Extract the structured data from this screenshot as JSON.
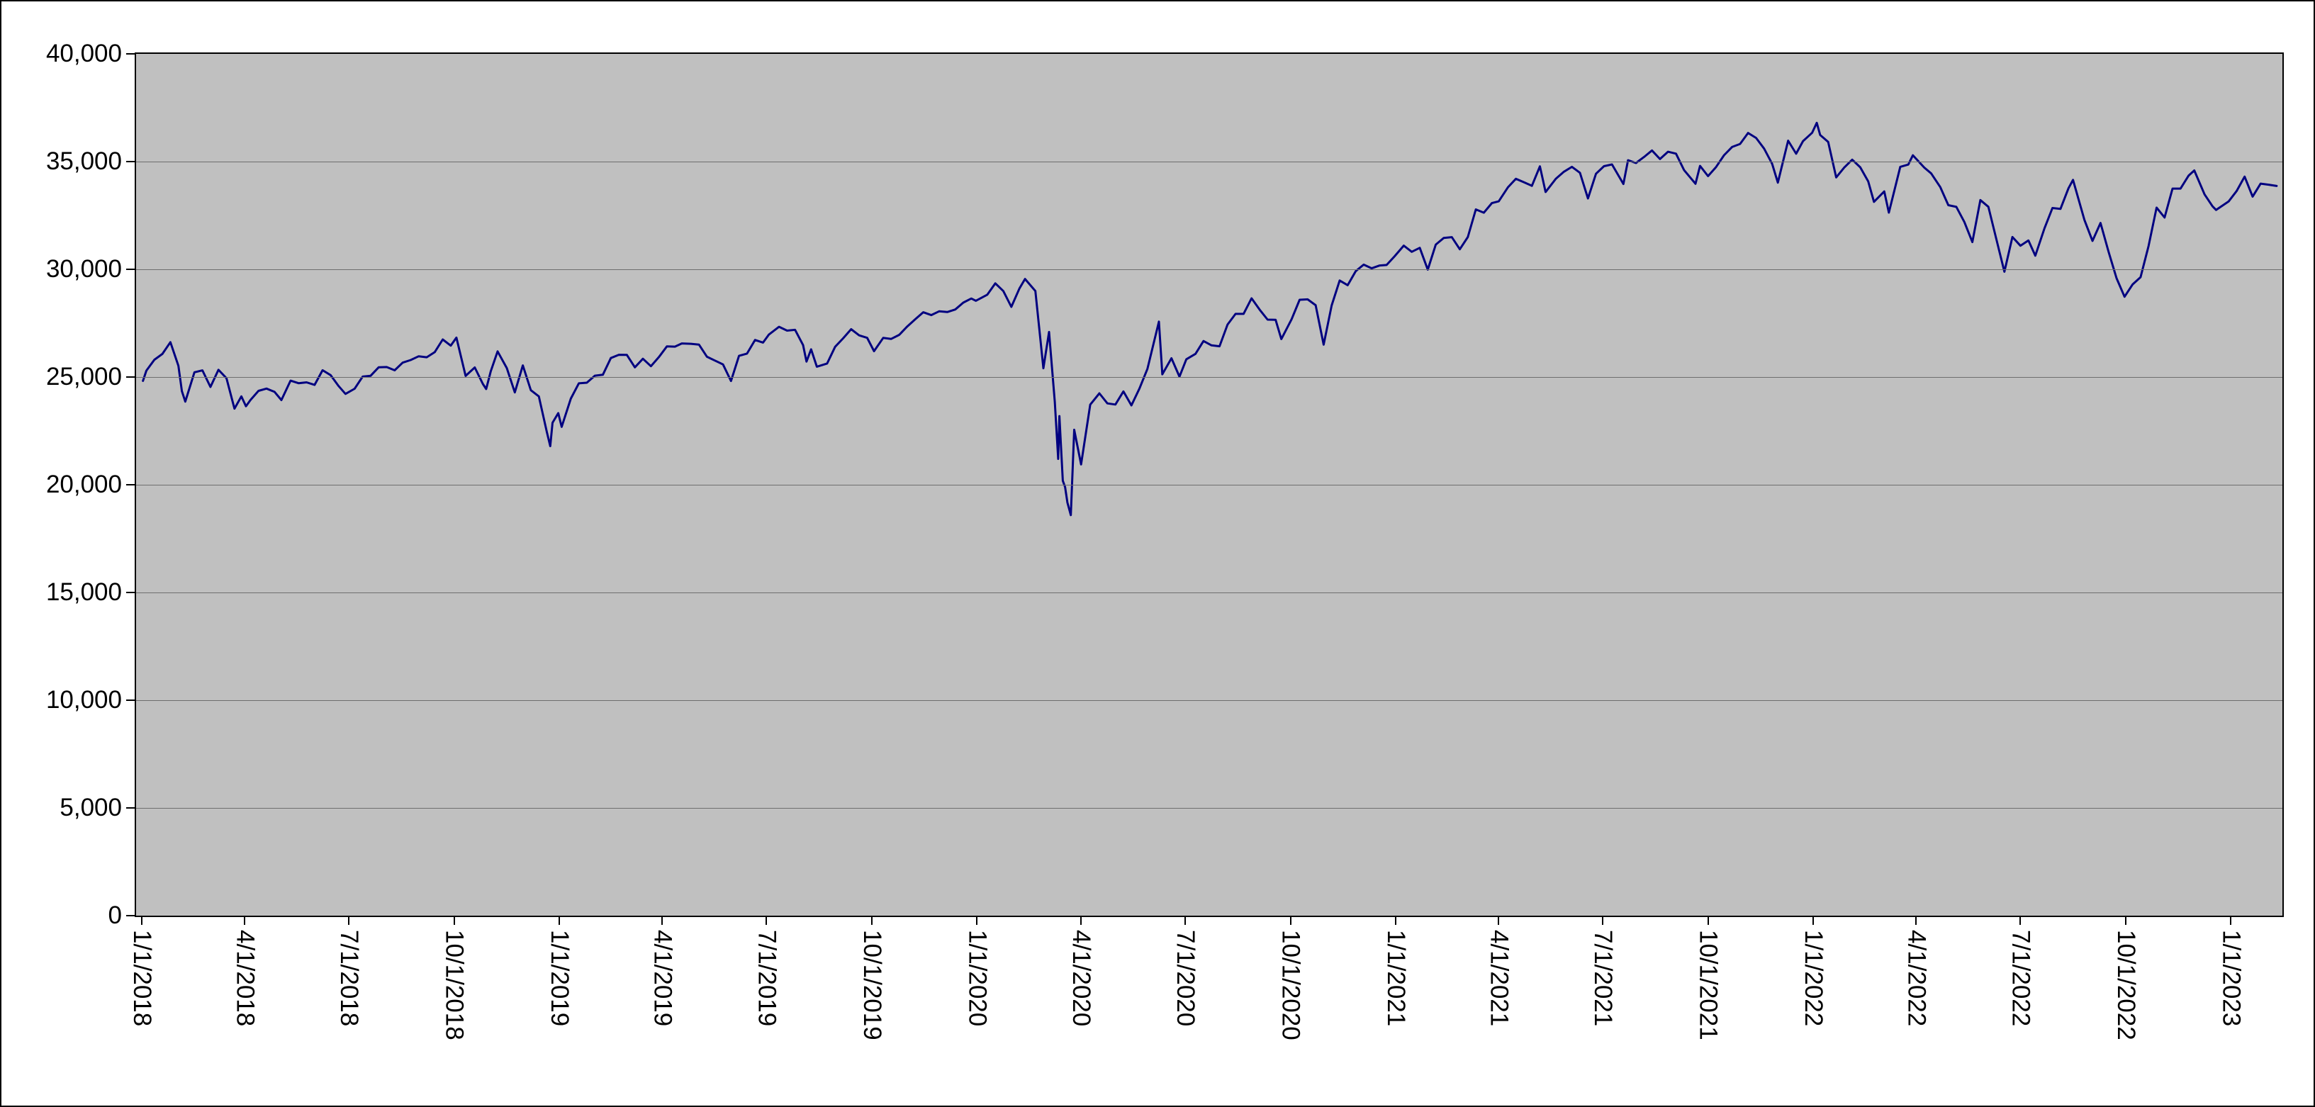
{
  "chart_data": {
    "type": "line",
    "title": "",
    "legend": "none",
    "grid": "horizontal-major",
    "colors": {
      "line": "#000080",
      "plot_bg": "#c0c0c0",
      "grid": "#6e6e6e",
      "axis": "#000000",
      "chart_bg": "#ffffff"
    },
    "y_axis": {
      "range": [
        0,
        40000
      ],
      "ticks": [
        {
          "value": 0,
          "label": "0"
        },
        {
          "value": 5000,
          "label": "5,000"
        },
        {
          "value": 10000,
          "label": "10,000"
        },
        {
          "value": 15000,
          "label": "15,000"
        },
        {
          "value": 20000,
          "label": "20,000"
        },
        {
          "value": 25000,
          "label": "25,000"
        },
        {
          "value": 30000,
          "label": "30,000"
        },
        {
          "value": 35000,
          "label": "35,000"
        },
        {
          "value": 40000,
          "label": "40,000"
        }
      ]
    },
    "x_axis": {
      "range_start": "12/27/2017",
      "range_end": "2/15/2023",
      "tick_labels": [
        "1/1/2018",
        "4/1/2018",
        "7/1/2018",
        "10/1/2018",
        "1/1/2019",
        "4/1/2019",
        "7/1/2019",
        "10/1/2019",
        "1/1/2020",
        "4/1/2020",
        "7/1/2020",
        "10/1/2020",
        "1/1/2021",
        "4/1/2021",
        "7/1/2021",
        "10/1/2021",
        "1/1/2022",
        "4/1/2022",
        "7/1/2022",
        "10/1/2022",
        "1/1/2023"
      ]
    },
    "points": [
      [
        "2018-01-02",
        24824
      ],
      [
        "2018-01-05",
        25296
      ],
      [
        "2018-01-12",
        25803
      ],
      [
        "2018-01-19",
        26072
      ],
      [
        "2018-01-26",
        26617
      ],
      [
        "2018-02-02",
        25521
      ],
      [
        "2018-02-05",
        24346
      ],
      [
        "2018-02-08",
        23860
      ],
      [
        "2018-02-16",
        25219
      ],
      [
        "2018-02-23",
        25310
      ],
      [
        "2018-03-02",
        24538
      ],
      [
        "2018-03-09",
        25336
      ],
      [
        "2018-03-16",
        24947
      ],
      [
        "2018-03-23",
        23533
      ],
      [
        "2018-03-29",
        24103
      ],
      [
        "2018-04-02",
        23644
      ],
      [
        "2018-04-06",
        23933
      ],
      [
        "2018-04-13",
        24360
      ],
      [
        "2018-04-20",
        24463
      ],
      [
        "2018-04-27",
        24311
      ],
      [
        "2018-05-03",
        23930
      ],
      [
        "2018-05-11",
        24831
      ],
      [
        "2018-05-18",
        24715
      ],
      [
        "2018-05-25",
        24753
      ],
      [
        "2018-06-01",
        24635
      ],
      [
        "2018-06-08",
        25317
      ],
      [
        "2018-06-15",
        25090
      ],
      [
        "2018-06-22",
        24581
      ],
      [
        "2018-06-28",
        24216
      ],
      [
        "2018-07-06",
        24456
      ],
      [
        "2018-07-13",
        25019
      ],
      [
        "2018-07-20",
        25058
      ],
      [
        "2018-07-27",
        25451
      ],
      [
        "2018-08-03",
        25463
      ],
      [
        "2018-08-10",
        25313
      ],
      [
        "2018-08-17",
        25669
      ],
      [
        "2018-08-24",
        25790
      ],
      [
        "2018-08-31",
        25965
      ],
      [
        "2018-09-07",
        25917
      ],
      [
        "2018-09-14",
        26155
      ],
      [
        "2018-09-21",
        26744
      ],
      [
        "2018-09-28",
        26458
      ],
      [
        "2018-10-03",
        26828
      ],
      [
        "2018-10-11",
        25053
      ],
      [
        "2018-10-19",
        25444
      ],
      [
        "2018-10-26",
        24688
      ],
      [
        "2018-10-29",
        24443
      ],
      [
        "2018-11-02",
        25271
      ],
      [
        "2018-11-08",
        26191
      ],
      [
        "2018-11-16",
        25413
      ],
      [
        "2018-11-23",
        24286
      ],
      [
        "2018-11-30",
        25538
      ],
      [
        "2018-12-07",
        24389
      ],
      [
        "2018-12-14",
        24101
      ],
      [
        "2018-12-21",
        22445
      ],
      [
        "2018-12-24",
        21792
      ],
      [
        "2018-12-26",
        22878
      ],
      [
        "2018-12-31",
        23327
      ],
      [
        "2019-01-03",
        22686
      ],
      [
        "2019-01-11",
        23996
      ],
      [
        "2019-01-18",
        24706
      ],
      [
        "2019-01-25",
        24737
      ],
      [
        "2019-02-01",
        25064
      ],
      [
        "2019-02-08",
        25106
      ],
      [
        "2019-02-15",
        25883
      ],
      [
        "2019-02-22",
        26032
      ],
      [
        "2019-03-01",
        26026
      ],
      [
        "2019-03-08",
        25450
      ],
      [
        "2019-03-15",
        25849
      ],
      [
        "2019-03-22",
        25502
      ],
      [
        "2019-03-29",
        25929
      ],
      [
        "2019-04-05",
        26425
      ],
      [
        "2019-04-12",
        26412
      ],
      [
        "2019-04-18",
        26560
      ],
      [
        "2019-04-26",
        26543
      ],
      [
        "2019-05-03",
        26505
      ],
      [
        "2019-05-10",
        25942
      ],
      [
        "2019-05-17",
        25764
      ],
      [
        "2019-05-24",
        25586
      ],
      [
        "2019-05-31",
        24815
      ],
      [
        "2019-06-07",
        25984
      ],
      [
        "2019-06-14",
        26090
      ],
      [
        "2019-06-21",
        26720
      ],
      [
        "2019-06-28",
        26600
      ],
      [
        "2019-07-03",
        26966
      ],
      [
        "2019-07-12",
        27332
      ],
      [
        "2019-07-19",
        27154
      ],
      [
        "2019-07-26",
        27192
      ],
      [
        "2019-08-02",
        26485
      ],
      [
        "2019-08-05",
        25718
      ],
      [
        "2019-08-09",
        26287
      ],
      [
        "2019-08-14",
        25479
      ],
      [
        "2019-08-23",
        25629
      ],
      [
        "2019-08-30",
        26403
      ],
      [
        "2019-09-06",
        26797
      ],
      [
        "2019-09-13",
        27220
      ],
      [
        "2019-09-20",
        26935
      ],
      [
        "2019-09-27",
        26820
      ],
      [
        "2019-10-03",
        26201
      ],
      [
        "2019-10-11",
        26817
      ],
      [
        "2019-10-18",
        26770
      ],
      [
        "2019-10-25",
        26958
      ],
      [
        "2019-11-01",
        27347
      ],
      [
        "2019-11-08",
        27681
      ],
      [
        "2019-11-15",
        28005
      ],
      [
        "2019-11-22",
        27876
      ],
      [
        "2019-11-29",
        28051
      ],
      [
        "2019-12-06",
        28015
      ],
      [
        "2019-12-13",
        28135
      ],
      [
        "2019-12-20",
        28455
      ],
      [
        "2019-12-27",
        28645
      ],
      [
        "2019-12-31",
        28538
      ],
      [
        "2020-01-10",
        28824
      ],
      [
        "2020-01-17",
        29348
      ],
      [
        "2020-01-24",
        28990
      ],
      [
        "2020-01-31",
        28256
      ],
      [
        "2020-02-07",
        29103
      ],
      [
        "2020-02-12",
        29551
      ],
      [
        "2020-02-21",
        28992
      ],
      [
        "2020-02-28",
        25409
      ],
      [
        "2020-03-04",
        27091
      ],
      [
        "2020-03-09",
        23851
      ],
      [
        "2020-03-12",
        21200
      ],
      [
        "2020-03-13",
        23186
      ],
      [
        "2020-03-16",
        20188
      ],
      [
        "2020-03-18",
        19899
      ],
      [
        "2020-03-20",
        19174
      ],
      [
        "2020-03-23",
        18592
      ],
      [
        "2020-03-26",
        22552
      ],
      [
        "2020-04-01",
        20943
      ],
      [
        "2020-04-09",
        23719
      ],
      [
        "2020-04-17",
        24242
      ],
      [
        "2020-04-24",
        23775
      ],
      [
        "2020-05-01",
        23724
      ],
      [
        "2020-05-08",
        24331
      ],
      [
        "2020-05-15",
        23685
      ],
      [
        "2020-05-22",
        24465
      ],
      [
        "2020-05-29",
        25383
      ],
      [
        "2020-06-08",
        27572
      ],
      [
        "2020-06-11",
        25128
      ],
      [
        "2020-06-19",
        25871
      ],
      [
        "2020-06-26",
        25016
      ],
      [
        "2020-07-02",
        25827
      ],
      [
        "2020-07-10",
        26075
      ],
      [
        "2020-07-17",
        26672
      ],
      [
        "2020-07-24",
        26470
      ],
      [
        "2020-07-31",
        26428
      ],
      [
        "2020-08-07",
        27433
      ],
      [
        "2020-08-14",
        27931
      ],
      [
        "2020-08-21",
        27930
      ],
      [
        "2020-08-28",
        28654
      ],
      [
        "2020-09-04",
        28133
      ],
      [
        "2020-09-11",
        27666
      ],
      [
        "2020-09-18",
        27657
      ],
      [
        "2020-09-23",
        26763
      ],
      [
        "2020-10-02",
        27683
      ],
      [
        "2020-10-09",
        28587
      ],
      [
        "2020-10-16",
        28606
      ],
      [
        "2020-10-23",
        28336
      ],
      [
        "2020-10-30",
        26502
      ],
      [
        "2020-11-06",
        28323
      ],
      [
        "2020-11-13",
        29480
      ],
      [
        "2020-11-20",
        29263
      ],
      [
        "2020-11-27",
        29910
      ],
      [
        "2020-12-04",
        30218
      ],
      [
        "2020-12-11",
        30046
      ],
      [
        "2020-12-18",
        30179
      ],
      [
        "2020-12-24",
        30200
      ],
      [
        "2020-12-31",
        30606
      ],
      [
        "2021-01-08",
        31098
      ],
      [
        "2021-01-15",
        30814
      ],
      [
        "2021-01-22",
        30997
      ],
      [
        "2021-01-29",
        29983
      ],
      [
        "2021-02-05",
        31148
      ],
      [
        "2021-02-12",
        31458
      ],
      [
        "2021-02-19",
        31494
      ],
      [
        "2021-02-26",
        30932
      ],
      [
        "2021-03-05",
        31496
      ],
      [
        "2021-03-12",
        32779
      ],
      [
        "2021-03-19",
        32628
      ],
      [
        "2021-03-26",
        33073
      ],
      [
        "2021-04-01",
        33153
      ],
      [
        "2021-04-09",
        33801
      ],
      [
        "2021-04-16",
        34201
      ],
      [
        "2021-04-23",
        34043
      ],
      [
        "2021-04-30",
        33875
      ],
      [
        "2021-05-07",
        34778
      ],
      [
        "2021-05-12",
        33588
      ],
      [
        "2021-05-21",
        34208
      ],
      [
        "2021-05-28",
        34529
      ],
      [
        "2021-06-04",
        34756
      ],
      [
        "2021-06-11",
        34480
      ],
      [
        "2021-06-18",
        33290
      ],
      [
        "2021-06-25",
        34434
      ],
      [
        "2021-07-02",
        34786
      ],
      [
        "2021-07-09",
        34870
      ],
      [
        "2021-07-19",
        33962
      ],
      [
        "2021-07-23",
        35062
      ],
      [
        "2021-07-30",
        34935
      ],
      [
        "2021-08-06",
        35209
      ],
      [
        "2021-08-13",
        35515
      ],
      [
        "2021-08-20",
        35120
      ],
      [
        "2021-08-27",
        35456
      ],
      [
        "2021-09-03",
        35369
      ],
      [
        "2021-09-10",
        34608
      ],
      [
        "2021-09-20",
        33970
      ],
      [
        "2021-09-24",
        34798
      ],
      [
        "2021-10-01",
        34326
      ],
      [
        "2021-10-08",
        34746
      ],
      [
        "2021-10-15",
        35295
      ],
      [
        "2021-10-22",
        35677
      ],
      [
        "2021-10-29",
        35820
      ],
      [
        "2021-11-05",
        36328
      ],
      [
        "2021-11-12",
        36100
      ],
      [
        "2021-11-19",
        35602
      ],
      [
        "2021-11-26",
        34899
      ],
      [
        "2021-12-01",
        34022
      ],
      [
        "2021-12-10",
        35971
      ],
      [
        "2021-12-17",
        35365
      ],
      [
        "2021-12-23",
        35950
      ],
      [
        "2021-12-31",
        36338
      ],
      [
        "2022-01-04",
        36800
      ],
      [
        "2022-01-07",
        36232
      ],
      [
        "2022-01-14",
        35912
      ],
      [
        "2022-01-21",
        34265
      ],
      [
        "2022-01-28",
        34725
      ],
      [
        "2022-02-04",
        35090
      ],
      [
        "2022-02-11",
        34738
      ],
      [
        "2022-02-18",
        34079
      ],
      [
        "2022-02-23",
        33132
      ],
      [
        "2022-03-04",
        33615
      ],
      [
        "2022-03-08",
        32632
      ],
      [
        "2022-03-18",
        34755
      ],
      [
        "2022-03-25",
        34861
      ],
      [
        "2022-03-29",
        35294
      ],
      [
        "2022-04-08",
        34721
      ],
      [
        "2022-04-14",
        34451
      ],
      [
        "2022-04-22",
        33811
      ],
      [
        "2022-04-29",
        32977
      ],
      [
        "2022-05-06",
        32899
      ],
      [
        "2022-05-13",
        32197
      ],
      [
        "2022-05-20",
        31262
      ],
      [
        "2022-05-27",
        33213
      ],
      [
        "2022-06-03",
        32900
      ],
      [
        "2022-06-10",
        31393
      ],
      [
        "2022-06-17",
        29889
      ],
      [
        "2022-06-24",
        31500
      ],
      [
        "2022-07-01",
        31097
      ],
      [
        "2022-07-08",
        31338
      ],
      [
        "2022-07-14",
        30630
      ],
      [
        "2022-07-22",
        31899
      ],
      [
        "2022-07-29",
        32845
      ],
      [
        "2022-08-05",
        32803
      ],
      [
        "2022-08-12",
        33761
      ],
      [
        "2022-08-16",
        34152
      ],
      [
        "2022-08-26",
        32283
      ],
      [
        "2022-09-02",
        31318
      ],
      [
        "2022-09-09",
        32152
      ],
      [
        "2022-09-16",
        30822
      ],
      [
        "2022-09-23",
        29590
      ],
      [
        "2022-09-30",
        28726
      ],
      [
        "2022-10-07",
        29297
      ],
      [
        "2022-10-14",
        29635
      ],
      [
        "2022-10-21",
        31083
      ],
      [
        "2022-10-28",
        32862
      ],
      [
        "2022-11-04",
        32403
      ],
      [
        "2022-11-11",
        33748
      ],
      [
        "2022-11-18",
        33746
      ],
      [
        "2022-11-25",
        34347
      ],
      [
        "2022-11-30",
        34590
      ],
      [
        "2022-12-09",
        33476
      ],
      [
        "2022-12-16",
        32920
      ],
      [
        "2022-12-19",
        32758
      ],
      [
        "2022-12-30",
        33147
      ],
      [
        "2023-01-06",
        33631
      ],
      [
        "2023-01-13",
        34303
      ],
      [
        "2023-01-20",
        33375
      ],
      [
        "2023-01-27",
        33978
      ],
      [
        "2023-02-03",
        33926
      ],
      [
        "2023-02-10",
        33869
      ]
    ]
  }
}
